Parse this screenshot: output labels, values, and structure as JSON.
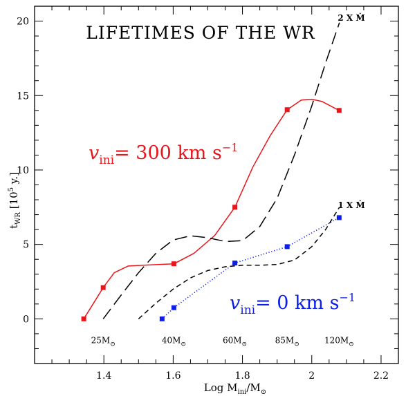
{
  "chart_data": {
    "type": "line",
    "title": "LIFETIMES OF THE WR",
    "xlabel": {
      "main": "Log M",
      "sub": "ini",
      "suffix": "/M",
      "sun": "⊙"
    },
    "ylabel": {
      "main": "t",
      "sub": "WR",
      "unit_pre": " [10",
      "unit_sup": "5",
      "unit_post": " y.]"
    },
    "xlim": [
      1.2,
      2.25
    ],
    "ylim": [
      -3,
      21
    ],
    "x_ticks": [
      1.4,
      1.6,
      1.8,
      2.0,
      2.2
    ],
    "x_tick_labels": [
      "1.4",
      "1.6",
      "1.8",
      "2",
      "2.2"
    ],
    "y_ticks": [
      0,
      5,
      10,
      15,
      20
    ],
    "y_tick_labels": [
      "0",
      "5",
      "10",
      "15",
      "20"
    ],
    "grid": false,
    "mass_labels": [
      {
        "x": 1.398,
        "text": "25M"
      },
      {
        "x": 1.602,
        "text": "40M"
      },
      {
        "x": 1.778,
        "text": "60M"
      },
      {
        "x": 1.929,
        "text": "85M"
      },
      {
        "x": 2.079,
        "text": "120M"
      }
    ],
    "series": [
      {
        "color": "#e8151b",
        "style": "solid",
        "points": [
          [
            1.342,
            0.0
          ],
          [
            1.398,
            2.1
          ],
          [
            1.602,
            3.7
          ],
          [
            1.778,
            7.5
          ],
          [
            1.929,
            14.05
          ],
          [
            2.079,
            14.0
          ]
        ],
        "curve": [
          [
            1.342,
            0.0
          ],
          [
            1.37,
            1.05
          ],
          [
            1.398,
            2.1
          ],
          [
            1.43,
            3.1
          ],
          [
            1.47,
            3.55
          ],
          [
            1.53,
            3.62
          ],
          [
            1.602,
            3.7
          ],
          [
            1.66,
            4.4
          ],
          [
            1.72,
            5.6
          ],
          [
            1.778,
            7.5
          ],
          [
            1.83,
            10.2
          ],
          [
            1.88,
            12.3
          ],
          [
            1.929,
            14.05
          ],
          [
            1.97,
            14.7
          ],
          [
            2.0,
            14.75
          ],
          [
            2.03,
            14.6
          ],
          [
            2.079,
            14.0
          ]
        ]
      },
      {
        "color": "#0d1fe6",
        "style": "dotted",
        "points": [
          [
            1.568,
            0.0
          ],
          [
            1.602,
            0.75
          ],
          [
            1.778,
            3.75
          ],
          [
            1.929,
            4.85
          ],
          [
            2.079,
            6.8
          ]
        ],
        "curve": [
          [
            1.568,
            0.0
          ],
          [
            1.602,
            0.75
          ],
          [
            1.778,
            3.75
          ],
          [
            1.929,
            4.85
          ],
          [
            2.079,
            6.8
          ]
        ]
      },
      {
        "color": "#000000",
        "style": "long-dash",
        "points": [],
        "curve": [
          [
            1.398,
            0.0
          ],
          [
            1.45,
            1.6
          ],
          [
            1.5,
            3.1
          ],
          [
            1.55,
            4.4
          ],
          [
            1.6,
            5.3
          ],
          [
            1.65,
            5.58
          ],
          [
            1.7,
            5.45
          ],
          [
            1.75,
            5.2
          ],
          [
            1.8,
            5.25
          ],
          [
            1.85,
            6.2
          ],
          [
            1.9,
            8.1
          ],
          [
            1.95,
            11.0
          ],
          [
            2.0,
            14.3
          ],
          [
            2.04,
            17.2
          ],
          [
            2.08,
            19.9
          ]
        ]
      },
      {
        "color": "#000000",
        "style": "short-dash",
        "points": [],
        "curve": [
          [
            1.5,
            0.0
          ],
          [
            1.55,
            1.05
          ],
          [
            1.6,
            2.0
          ],
          [
            1.65,
            2.75
          ],
          [
            1.7,
            3.25
          ],
          [
            1.75,
            3.5
          ],
          [
            1.8,
            3.6
          ],
          [
            1.85,
            3.6
          ],
          [
            1.9,
            3.65
          ],
          [
            1.95,
            3.95
          ],
          [
            2.0,
            4.85
          ],
          [
            2.04,
            6.0
          ],
          [
            2.08,
            7.5
          ]
        ]
      }
    ],
    "annotations": {
      "mdot2": "2 X Ṁ",
      "mdot1": "1 X Ṁ",
      "v300": {
        "sym": "v",
        "sub": "ini",
        "text": "= 300 km s",
        "sup": "−1"
      },
      "v0": {
        "sym": "v",
        "sub": "ini",
        "text": "= 0 km s",
        "sup": "−1"
      }
    }
  }
}
